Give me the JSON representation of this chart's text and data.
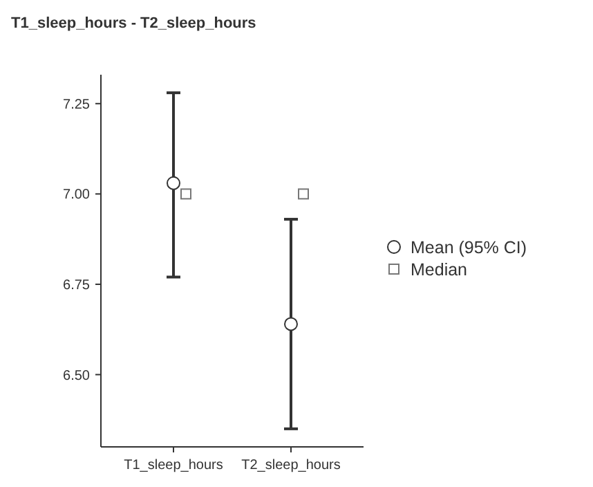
{
  "chart_data": {
    "type": "scatter",
    "title": "T1_sleep_hours - T2_sleep_hours",
    "categories": [
      "T1_sleep_hours",
      "T2_sleep_hours"
    ],
    "series": [
      {
        "name": "Mean (95% CI)",
        "marker": "circle",
        "color": "#333333",
        "values": [
          7.03,
          6.64
        ],
        "errors": [
          [
            6.77,
            7.28
          ],
          [
            6.35,
            6.93
          ]
        ]
      },
      {
        "name": "Median",
        "marker": "square",
        "color": "#777777",
        "values": [
          7.0,
          7.0
        ]
      }
    ],
    "ylim": [
      6.3,
      7.33
    ],
    "yticks": [
      {
        "value": 6.5,
        "label": "6.50"
      },
      {
        "value": 6.75,
        "label": "6.75"
      },
      {
        "value": 7,
        "label": "7.00"
      },
      {
        "value": 7.25,
        "label": "7.25"
      }
    ],
    "grid": false,
    "legend": "right"
  }
}
